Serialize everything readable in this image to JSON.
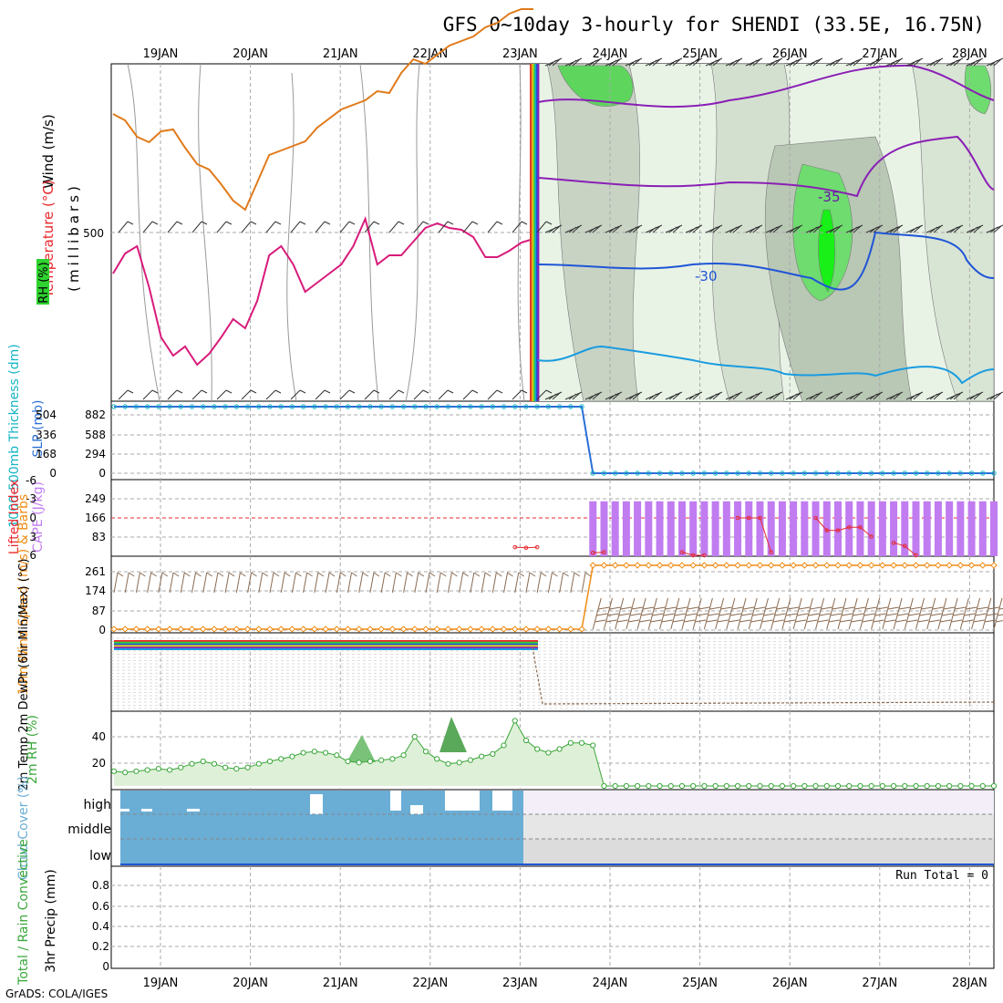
{
  "title": "GFS 0~10day 3-hourly for SHENDI (33.5E, 16.75N)",
  "footer": "GrADS: COLA/IGES",
  "colors": {
    "temp_line": "#e07a1a",
    "temp_line2": "#d81b7a",
    "wind_purple": "#8a1fb5",
    "blue_contour": "#1f55d6",
    "cyan_contour": "#1a9be0",
    "rh_green": "#2fd22f",
    "slp": "#2a6fd6",
    "thickness": "#14b4c4",
    "cape": "#c07cf0",
    "lifted": "#e8282d",
    "wind10": "#f08c14",
    "barb": "#8a6a50",
    "rh2m": "#3aa63a",
    "cloud": "#6aaed6"
  },
  "chart_data": [
    {
      "panel": "upper-air",
      "type": "contour",
      "ylabel_units": "(millibars)",
      "ylabels": [
        {
          "text": "Wind (m/s)",
          "color": "#000000"
        },
        {
          "text": "Temperature (°C)",
          "color": "#e8282d"
        },
        {
          "text": "RH (%)",
          "color": "#2fd22f"
        }
      ],
      "level_tick": "500",
      "contour_labels": [
        "-35",
        "-30"
      ],
      "x_days": [
        19,
        20,
        21,
        22,
        23,
        24,
        25,
        26,
        27,
        28
      ],
      "x_labels_top": [
        "19JAN",
        "20JAN",
        "21JAN",
        "22JAN",
        "23JAN",
        "24JAN",
        "25JAN",
        "26JAN",
        "27JAN",
        "28JAN"
      ],
      "orange_line": [
        55,
        62,
        80,
        86,
        74,
        72,
        92,
        110,
        116,
        132,
        150,
        160,
        130,
        100,
        95,
        90,
        85,
        70,
        60,
        50,
        45,
        40,
        30,
        32,
        10,
        -5,
        0,
        -10,
        -20,
        -25,
        -30,
        -40,
        -45,
        -55,
        -60,
        -60
      ],
      "pink_line": [
        230,
        208,
        200,
        245,
        300,
        320,
        310,
        330,
        318,
        300,
        280,
        290,
        260,
        210,
        200,
        220,
        250,
        240,
        230,
        220,
        200,
        170,
        220,
        210,
        210,
        195,
        180,
        175,
        180,
        182,
        190,
        212,
        212,
        205,
        196,
        192
      ]
    },
    {
      "panel": "thickness-slp",
      "type": "line",
      "ylabel_left": "1000-500mb Thickness (dm)",
      "ylabel_right": "SLP (mb)",
      "yticks_left": [
        "504",
        "336",
        "168",
        "0"
      ],
      "yticks_right": [
        "882",
        "588",
        "294",
        "0"
      ],
      "series": [
        {
          "name": "SLP",
          "color": "#2a6fd6",
          "values": [
            1012,
            1012,
            1012,
            1012,
            1012,
            1012,
            1012,
            1012,
            1012,
            1012,
            1012,
            1012,
            1012,
            1012,
            1012,
            1012,
            1012,
            1012,
            1012,
            1012,
            1012,
            1012,
            1012,
            1012,
            1012,
            1012,
            1012,
            1012,
            1012,
            1012,
            1012,
            1012,
            1012,
            1012,
            1012,
            1012,
            1012,
            1012,
            1012,
            1012,
            1012,
            1012,
            1012,
            0,
            0,
            0,
            0,
            0,
            0,
            0,
            0,
            0,
            0,
            0,
            0,
            0,
            0,
            0,
            0,
            0,
            0,
            0,
            0,
            0,
            0,
            0,
            0,
            0,
            0,
            0,
            0,
            0,
            0,
            0,
            0,
            0,
            0,
            0,
            0,
            0
          ]
        }
      ]
    },
    {
      "panel": "cape-li",
      "type": "bar",
      "ylabel_left": "Lifted Index",
      "ylabel_right": "CAPE (J/kg)",
      "yticks_left": [
        "-6",
        "-3",
        "0",
        "3",
        "6"
      ],
      "yticks_right": [
        "249",
        "166",
        "83"
      ],
      "cape_values": [
        0,
        0,
        0,
        0,
        0,
        0,
        0,
        0,
        0,
        0,
        0,
        0,
        0,
        0,
        0,
        0,
        0,
        0,
        0,
        0,
        0,
        0,
        0,
        0,
        0,
        0,
        0,
        0,
        0,
        0,
        0,
        0,
        0,
        0,
        0,
        0,
        0,
        0,
        0,
        0,
        0,
        0,
        0,
        238,
        238,
        238,
        238,
        238,
        238,
        238,
        238,
        238,
        238,
        238,
        238,
        238,
        238,
        238,
        238,
        238,
        238,
        238,
        238,
        238,
        238,
        238,
        238,
        238,
        238,
        238,
        238,
        238,
        238,
        238,
        238,
        238,
        238,
        238,
        238,
        238
      ],
      "li_values": [
        null,
        null,
        null,
        null,
        null,
        null,
        null,
        null,
        null,
        null,
        null,
        null,
        null,
        null,
        null,
        null,
        null,
        null,
        null,
        null,
        null,
        null,
        null,
        null,
        null,
        null,
        null,
        null,
        null,
        null,
        null,
        null,
        null,
        null,
        null,
        null,
        4.7,
        4.8,
        4.7,
        null,
        null,
        null,
        null,
        5.6,
        5.5,
        null,
        null,
        null,
        null,
        null,
        null,
        5.5,
        6,
        6,
        null,
        null,
        0,
        0,
        0,
        5.5,
        null,
        null,
        null,
        0,
        2,
        2,
        1.5,
        1.5,
        3,
        null,
        4,
        4.5,
        6,
        null,
        null,
        null,
        null,
        null,
        null,
        null
      ],
      "reference_line": 0
    },
    {
      "panel": "wind10m",
      "type": "line",
      "ylabel": "10m Wind Speed (m/s) & Barbs",
      "yticks": [
        "261",
        "174",
        "87",
        "0"
      ],
      "values": [
        0,
        0,
        0,
        0,
        0,
        0,
        0,
        0,
        0,
        0,
        0,
        0,
        0,
        0,
        0,
        0,
        0,
        0,
        0,
        0,
        0,
        0,
        0,
        0,
        0,
        0,
        0,
        0,
        0,
        0,
        0,
        0,
        0,
        0,
        0,
        0,
        0,
        0,
        0,
        0,
        0,
        0,
        0,
        261,
        261,
        261,
        261,
        261,
        261,
        261,
        261,
        261,
        261,
        261,
        261,
        261,
        261,
        261,
        261,
        261,
        261,
        261,
        261,
        261,
        261,
        261,
        261,
        261,
        261,
        261,
        261,
        261,
        261,
        261,
        261,
        261,
        261,
        261,
        261,
        261
      ]
    },
    {
      "panel": "temp2m",
      "type": "line",
      "ylabel": "2m Temp 2m DewPt (6hr Min/Max) (°C)",
      "note": "compressed scale; values collapse near bottom after 23JAN"
    },
    {
      "panel": "rh2m",
      "type": "area",
      "ylabel": "2m RH (%)",
      "yticks": [
        "40",
        "20"
      ],
      "values": [
        12,
        11,
        12,
        13,
        14,
        13,
        15,
        18,
        20,
        18,
        15,
        14,
        15,
        18,
        20,
        22,
        24,
        27,
        28,
        27,
        25,
        20,
        19,
        20,
        21,
        22,
        25,
        40,
        28,
        22,
        18,
        19,
        21,
        24,
        26,
        33,
        53,
        37,
        30,
        27,
        30,
        35,
        35,
        33,
        0,
        0,
        0,
        0,
        0,
        0,
        0,
        0,
        0,
        0,
        0,
        0,
        0,
        0,
        0,
        0,
        0,
        0,
        0,
        0,
        0,
        0,
        0,
        0,
        0,
        0,
        0,
        0,
        0,
        0,
        0,
        0,
        0,
        0,
        0,
        0
      ]
    },
    {
      "panel": "cloud",
      "type": "bar",
      "ylabel": "Cloud Cover (%)",
      "levels": [
        "high",
        "middle",
        "low"
      ]
    },
    {
      "panel": "precip",
      "type": "bar",
      "ylabel_left": "Total / Rain Convective",
      "ylabel_right": "3hr Precip (mm)",
      "yticks": [
        "0.8",
        "0.6",
        "0.4",
        "0.2",
        "0"
      ],
      "run_total": "Run Total = 0",
      "x_labels_bottom": [
        "19JAN",
        "20JAN",
        "21JAN",
        "22JAN",
        "23JAN",
        "24JAN",
        "25JAN",
        "26JAN",
        "27JAN",
        "28JAN"
      ]
    }
  ]
}
